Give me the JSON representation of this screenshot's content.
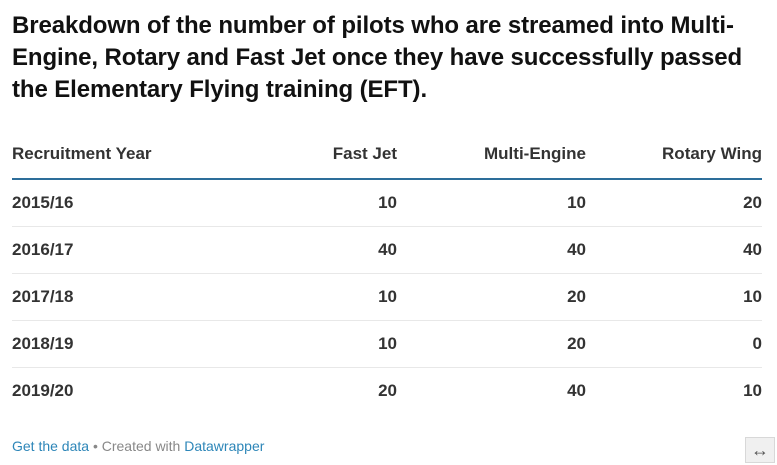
{
  "title": "Breakdown of the number of pilots who are streamed into Multi-Engine, Rotary and Fast Jet once they have successfully passed the Elementary Flying training (EFT).",
  "chart_data": {
    "type": "table",
    "columns": [
      "Recruitment Year",
      "Fast Jet",
      "Multi-Engine",
      "Rotary Wing"
    ],
    "rows": [
      [
        "2015/16",
        "10",
        "10",
        "20"
      ],
      [
        "2016/17",
        "40",
        "40",
        "40"
      ],
      [
        "2017/18",
        "10",
        "20",
        "10"
      ],
      [
        "2018/19",
        "10",
        "20",
        "0"
      ],
      [
        "2019/20",
        "20",
        "40",
        "10"
      ]
    ]
  },
  "footer": {
    "get_data": "Get the data",
    "separator": " • Created with ",
    "tool": "Datawrapper"
  },
  "colors": {
    "header_rule": "#2d6e9a",
    "link": "#2d86b8"
  },
  "icons": {
    "resize": "horizontal-arrows-icon"
  }
}
